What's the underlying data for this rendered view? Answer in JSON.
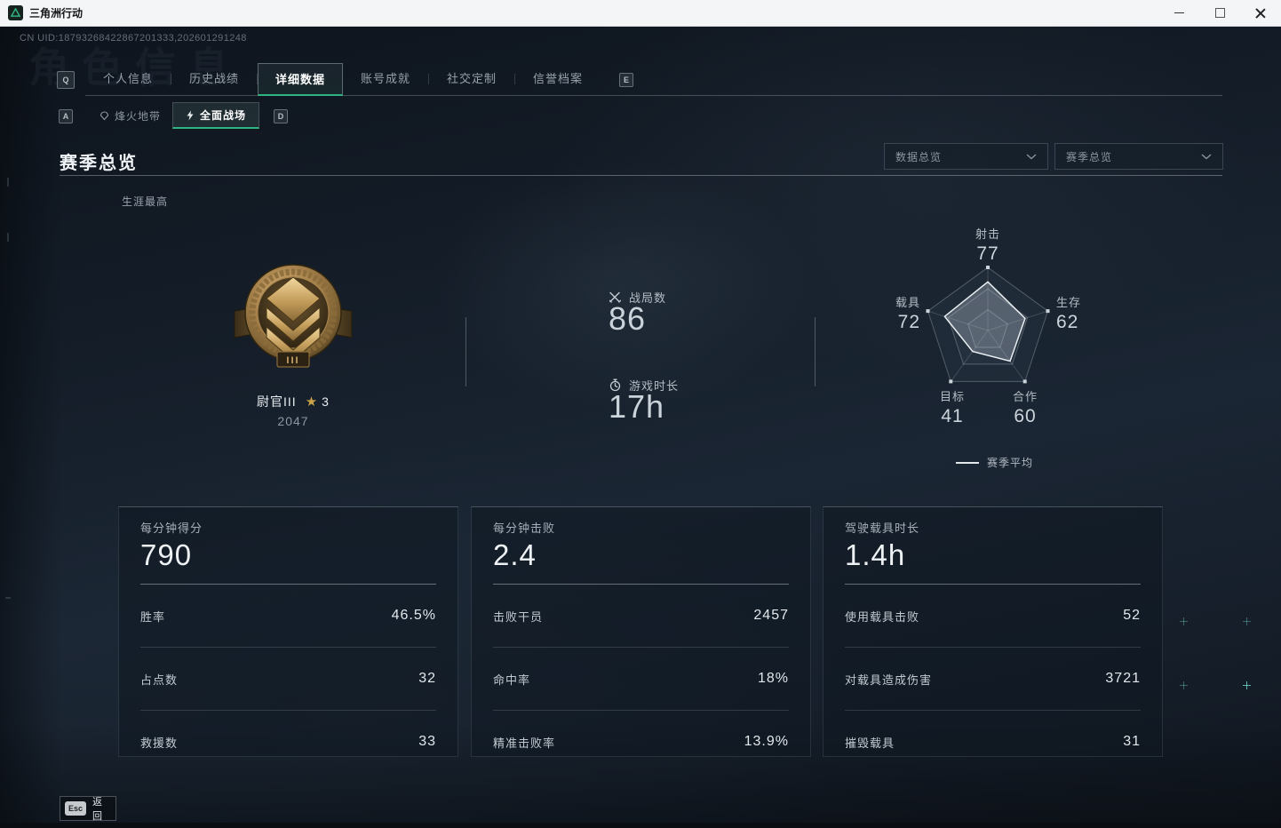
{
  "window": {
    "title": "三角洲行动"
  },
  "header": {
    "uid": "CN UID:18793268422867201333,202601291248",
    "ghost_title": "角色信息"
  },
  "tabs": {
    "key_prev": "Q",
    "key_next": "E",
    "items": [
      {
        "label": "个人信息",
        "active": false
      },
      {
        "label": "历史战绩",
        "active": false
      },
      {
        "label": "详细数据",
        "active": true
      },
      {
        "label": "账号成就",
        "active": false
      },
      {
        "label": "社交定制",
        "active": false
      },
      {
        "label": "信誉档案",
        "active": false
      }
    ]
  },
  "subtabs": {
    "key_prev": "A",
    "key_next": "D",
    "items": [
      {
        "label": "烽火地带",
        "active": false
      },
      {
        "label": "全面战场",
        "active": true
      }
    ]
  },
  "section": {
    "title": "赛季总览",
    "filter_data": "数据总览",
    "filter_season": "赛季总览"
  },
  "career": {
    "label": "生涯最高",
    "rank": "尉官III",
    "star": "★",
    "star_count": "3",
    "score": "2047",
    "medal_tier": "III"
  },
  "summary_stats": [
    {
      "icon": "battles-icon",
      "label": "战局数",
      "value": "86"
    },
    {
      "icon": "playtime-icon",
      "label": "游戏时长",
      "value": "17h"
    }
  ],
  "chart_data": {
    "type": "radar",
    "max": 100,
    "rings": [
      1,
      0.66,
      0.33
    ],
    "axes": [
      {
        "label": "射击",
        "value": 77
      },
      {
        "label": "生存",
        "value": 62
      },
      {
        "label": "合作",
        "value": 60
      },
      {
        "label": "目标",
        "value": 41
      },
      {
        "label": "载具",
        "value": 72
      }
    ],
    "legend": [
      {
        "label": "赛季平均"
      }
    ]
  },
  "cards": [
    {
      "headline_label": "每分钟得分",
      "headline_value": "790",
      "rows": [
        {
          "label": "胜率",
          "value": "46.5%"
        },
        {
          "label": "占点数",
          "value": "32"
        },
        {
          "label": "救援数",
          "value": "33"
        }
      ]
    },
    {
      "headline_label": "每分钟击败",
      "headline_value": "2.4",
      "rows": [
        {
          "label": "击败干员",
          "value": "2457"
        },
        {
          "label": "命中率",
          "value": "18%"
        },
        {
          "label": "精准击败率",
          "value": "13.9%"
        }
      ]
    },
    {
      "headline_label": "驾驶载具时长",
      "headline_value": "1.4h",
      "rows": [
        {
          "label": "使用载具击败",
          "value": "52"
        },
        {
          "label": "对载具造成伤害",
          "value": "3721"
        },
        {
          "label": "摧毁载具",
          "value": "31"
        }
      ]
    }
  ],
  "footer": {
    "key": "Esc",
    "label": "返回"
  },
  "colors": {
    "accent_green": "#2eb381",
    "gold_star": "#c9a24a",
    "background": "#131a24",
    "titlebar": "#f4f5f6"
  }
}
